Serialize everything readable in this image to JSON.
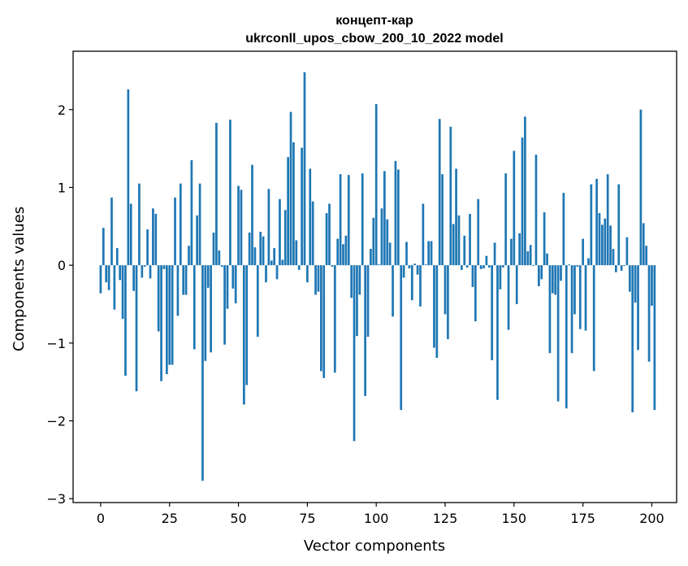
{
  "chart_data": {
    "type": "bar",
    "title_line1": "концепт-кар",
    "title_line2": "ukrconll_upos_cbow_200_10_2022 model",
    "xlabel": "Vector components",
    "ylabel": "Components values",
    "xlim": [
      -10,
      209
    ],
    "ylim": [
      -3.05,
      2.75
    ],
    "xticks": [
      0,
      25,
      50,
      75,
      100,
      125,
      150,
      175,
      200
    ],
    "xtick_labels": [
      "0",
      "25",
      "50",
      "75",
      "100",
      "125",
      "150",
      "175",
      "200"
    ],
    "yticks": [
      -3,
      -2,
      -1,
      0,
      1,
      2
    ],
    "ytick_labels": [
      "−3",
      "−2",
      "−1",
      "0",
      "1",
      "2"
    ],
    "bar_color": "#1f77b4",
    "values": [
      -0.36,
      0.48,
      -0.22,
      -0.32,
      0.87,
      -0.57,
      0.22,
      -0.19,
      -0.69,
      -1.42,
      2.26,
      0.79,
      -0.33,
      -1.62,
      1.05,
      -0.16,
      -0.02,
      0.46,
      -0.17,
      0.73,
      0.66,
      -0.85,
      -1.49,
      -0.05,
      -1.4,
      -1.28,
      -1.28,
      0.87,
      -0.65,
      1.05,
      -0.38,
      -0.38,
      0.25,
      1.35,
      -1.08,
      0.64,
      1.05,
      -2.77,
      -1.23,
      -0.29,
      -1.12,
      0.42,
      1.83,
      0.19,
      -0.02,
      -1.02,
      -0.56,
      1.87,
      -0.3,
      -0.49,
      1.02,
      0.97,
      -1.79,
      -1.54,
      0.42,
      1.29,
      0.23,
      -0.92,
      0.43,
      0.37,
      -0.22,
      0.98,
      0.06,
      0.22,
      -0.18,
      0.85,
      0.07,
      0.71,
      1.39,
      1.97,
      1.58,
      0.32,
      -0.06,
      1.51,
      2.48,
      -0.22,
      1.24,
      0.82,
      -0.38,
      -0.34,
      -1.36,
      -1.45,
      0.67,
      0.79,
      -0.02,
      -1.38,
      0.34,
      1.17,
      0.27,
      0.38,
      1.16,
      -0.42,
      -2.26,
      -0.91,
      -0.38,
      1.18,
      -1.68,
      -0.92,
      0.21,
      0.61,
      2.07,
      0.01,
      0.73,
      1.21,
      0.59,
      0.29,
      -0.66,
      1.34,
      1.23,
      -1.86,
      -0.16,
      0.3,
      -0.04,
      -0.45,
      0.02,
      -0.12,
      -0.53,
      0.79,
      0.01,
      0.31,
      0.31,
      -1.06,
      -1.19,
      1.88,
      1.17,
      -0.63,
      -0.95,
      1.78,
      0.53,
      1.24,
      0.64,
      -0.06,
      0.38,
      -0.03,
      0.66,
      -0.28,
      -0.72,
      0.85,
      -0.05,
      -0.04,
      0.12,
      -0.03,
      -1.22,
      0.29,
      -1.73,
      -0.31,
      -0.03,
      1.18,
      -0.83,
      0.34,
      1.47,
      -0.5,
      0.41,
      1.64,
      1.91,
      0.18,
      0.26,
      -0.01,
      1.42,
      -0.27,
      -0.18,
      0.68,
      0.15,
      -1.13,
      -0.36,
      -0.38,
      -1.75,
      -0.2,
      0.93,
      -1.84,
      0.01,
      -1.13,
      -0.63,
      -0.02,
      -0.82,
      0.34,
      -0.84,
      0.09,
      1.04,
      -1.36,
      1.11,
      0.67,
      0.52,
      0.6,
      1.17,
      0.51,
      0.21,
      -0.09,
      1.04,
      -0.07,
      -0.01,
      0.36,
      -0.34,
      -1.89,
      -0.48,
      -1.09,
      2.0,
      0.54,
      0.25,
      -1.24,
      -0.52,
      -1.86
    ]
  }
}
